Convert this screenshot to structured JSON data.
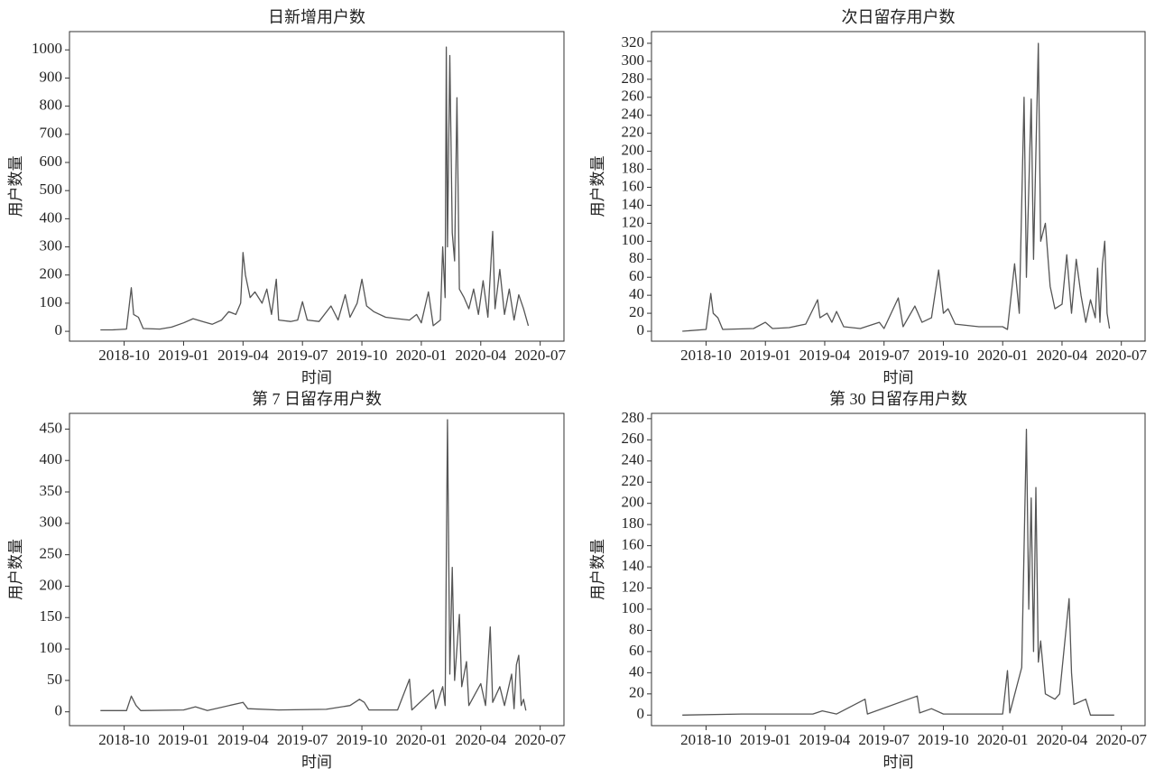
{
  "chart_data": [
    {
      "type": "line",
      "title": "日新增用户数",
      "xlabel": "时间",
      "ylabel": "用户数量",
      "color": "#555555",
      "xlim": [
        2018.52,
        2020.6
      ],
      "ylim": [
        -35,
        1065
      ],
      "xticks": [
        {
          "value": 2018.75,
          "label": "2018-10"
        },
        {
          "value": 2019.0,
          "label": "2019-01"
        },
        {
          "value": 2019.25,
          "label": "2019-04"
        },
        {
          "value": 2019.5,
          "label": "2019-07"
        },
        {
          "value": 2019.75,
          "label": "2019-10"
        },
        {
          "value": 2020.0,
          "label": "2020-01"
        },
        {
          "value": 2020.25,
          "label": "2020-04"
        },
        {
          "value": 2020.5,
          "label": "2020-07"
        }
      ],
      "yticks": [
        0,
        100,
        200,
        300,
        400,
        500,
        600,
        700,
        800,
        900,
        1000
      ],
      "x": [
        2018.65,
        2018.7,
        2018.76,
        2018.78,
        2018.79,
        2018.81,
        2018.83,
        2018.9,
        2018.95,
        2019.0,
        2019.04,
        2019.08,
        2019.12,
        2019.16,
        2019.19,
        2019.22,
        2019.24,
        2019.25,
        2019.26,
        2019.28,
        2019.3,
        2019.33,
        2019.35,
        2019.37,
        2019.39,
        2019.4,
        2019.45,
        2019.48,
        2019.5,
        2019.52,
        2019.57,
        2019.62,
        2019.65,
        2019.68,
        2019.7,
        2019.73,
        2019.75,
        2019.77,
        2019.8,
        2019.85,
        2019.9,
        2019.95,
        2019.98,
        2020.0,
        2020.03,
        2020.05,
        2020.08,
        2020.09,
        2020.1,
        2020.105,
        2020.11,
        2020.12,
        2020.13,
        2020.14,
        2020.15,
        2020.16,
        2020.18,
        2020.2,
        2020.22,
        2020.24,
        2020.26,
        2020.28,
        2020.3,
        2020.31,
        2020.33,
        2020.35,
        2020.37,
        2020.39,
        2020.41,
        2020.43,
        2020.45
      ],
      "values": [
        5,
        5,
        8,
        155,
        60,
        50,
        10,
        8,
        15,
        30,
        45,
        35,
        25,
        40,
        70,
        60,
        100,
        280,
        200,
        120,
        140,
        100,
        150,
        60,
        185,
        40,
        35,
        40,
        105,
        40,
        35,
        90,
        40,
        130,
        50,
        100,
        185,
        90,
        70,
        50,
        45,
        40,
        60,
        30,
        140,
        20,
        40,
        300,
        120,
        1010,
        300,
        980,
        350,
        250,
        830,
        150,
        120,
        80,
        150,
        60,
        180,
        50,
        355,
        80,
        220,
        60,
        150,
        40,
        130,
        80,
        20
      ]
    },
    {
      "type": "line",
      "title": "次日留存用户数",
      "xlabel": "时间",
      "ylabel": "用户数量",
      "color": "#555555",
      "xlim": [
        2018.52,
        2020.6
      ],
      "ylim": [
        -11,
        333
      ],
      "xticks": [
        {
          "value": 2018.75,
          "label": "2018-10"
        },
        {
          "value": 2019.0,
          "label": "2019-01"
        },
        {
          "value": 2019.25,
          "label": "2019-04"
        },
        {
          "value": 2019.5,
          "label": "2019-07"
        },
        {
          "value": 2019.75,
          "label": "2019-10"
        },
        {
          "value": 2020.0,
          "label": "2020-01"
        },
        {
          "value": 2020.25,
          "label": "2020-04"
        },
        {
          "value": 2020.5,
          "label": "2020-07"
        }
      ],
      "yticks": [
        0,
        20,
        40,
        60,
        80,
        100,
        120,
        140,
        160,
        180,
        200,
        220,
        240,
        260,
        280,
        300,
        320
      ],
      "x": [
        2018.65,
        2018.75,
        2018.77,
        2018.78,
        2018.8,
        2018.82,
        2018.95,
        2019.0,
        2019.03,
        2019.1,
        2019.17,
        2019.22,
        2019.23,
        2019.26,
        2019.28,
        2019.3,
        2019.33,
        2019.4,
        2019.48,
        2019.5,
        2019.56,
        2019.58,
        2019.63,
        2019.66,
        2019.7,
        2019.73,
        2019.75,
        2019.77,
        2019.8,
        2019.9,
        2020.0,
        2020.02,
        2020.05,
        2020.07,
        2020.09,
        2020.1,
        2020.12,
        2020.13,
        2020.15,
        2020.16,
        2020.18,
        2020.2,
        2020.22,
        2020.25,
        2020.27,
        2020.29,
        2020.31,
        2020.33,
        2020.35,
        2020.37,
        2020.39,
        2020.4,
        2020.41,
        2020.42,
        2020.43,
        2020.44,
        2020.45
      ],
      "values": [
        0,
        2,
        42,
        20,
        15,
        2,
        3,
        10,
        3,
        4,
        8,
        35,
        15,
        20,
        10,
        22,
        5,
        3,
        10,
        3,
        37,
        5,
        28,
        10,
        15,
        68,
        20,
        25,
        8,
        5,
        5,
        2,
        75,
        20,
        260,
        60,
        258,
        80,
        320,
        100,
        120,
        50,
        25,
        30,
        85,
        20,
        80,
        40,
        10,
        35,
        15,
        70,
        10,
        75,
        100,
        20,
        3
      ]
    },
    {
      "type": "line",
      "title": "第 7 日留存用户数",
      "xlabel": "时间",
      "ylabel": "用户数量",
      "color": "#555555",
      "xlim": [
        2018.52,
        2020.6
      ],
      "ylim": [
        -22,
        475
      ],
      "xticks": [
        {
          "value": 2018.75,
          "label": "2018-10"
        },
        {
          "value": 2019.0,
          "label": "2019-01"
        },
        {
          "value": 2019.25,
          "label": "2019-04"
        },
        {
          "value": 2019.5,
          "label": "2019-07"
        },
        {
          "value": 2019.75,
          "label": "2019-10"
        },
        {
          "value": 2020.0,
          "label": "2020-01"
        },
        {
          "value": 2020.25,
          "label": "2020-04"
        },
        {
          "value": 2020.5,
          "label": "2020-07"
        }
      ],
      "yticks": [
        0,
        50,
        100,
        150,
        200,
        250,
        300,
        350,
        400,
        450
      ],
      "x": [
        2018.65,
        2018.76,
        2018.78,
        2018.8,
        2018.82,
        2019.0,
        2019.05,
        2019.1,
        2019.25,
        2019.27,
        2019.4,
        2019.6,
        2019.7,
        2019.74,
        2019.76,
        2019.78,
        2019.9,
        2019.95,
        2019.96,
        2020.05,
        2020.06,
        2020.09,
        2020.1,
        2020.11,
        2020.12,
        2020.13,
        2020.14,
        2020.16,
        2020.17,
        2020.19,
        2020.2,
        2020.25,
        2020.27,
        2020.29,
        2020.3,
        2020.33,
        2020.35,
        2020.38,
        2020.39,
        2020.4,
        2020.41,
        2020.42,
        2020.43,
        2020.44
      ],
      "values": [
        2,
        2,
        25,
        10,
        2,
        3,
        8,
        2,
        15,
        5,
        3,
        4,
        10,
        20,
        15,
        3,
        3,
        52,
        3,
        35,
        5,
        40,
        10,
        465,
        60,
        230,
        50,
        155,
        40,
        80,
        10,
        45,
        10,
        135,
        15,
        40,
        10,
        60,
        5,
        75,
        90,
        10,
        20,
        2
      ]
    },
    {
      "type": "line",
      "title": "第 30 日留存用户数",
      "xlabel": "时间",
      "ylabel": "用户数量",
      "color": "#555555",
      "xlim": [
        2018.52,
        2020.6
      ],
      "ylim": [
        -10,
        285
      ],
      "xticks": [
        {
          "value": 2018.75,
          "label": "2018-10"
        },
        {
          "value": 2019.0,
          "label": "2019-01"
        },
        {
          "value": 2019.25,
          "label": "2019-04"
        },
        {
          "value": 2019.5,
          "label": "2019-07"
        },
        {
          "value": 2019.75,
          "label": "2019-10"
        },
        {
          "value": 2020.0,
          "label": "2020-01"
        },
        {
          "value": 2020.25,
          "label": "2020-04"
        },
        {
          "value": 2020.5,
          "label": "2020-07"
        }
      ],
      "yticks": [
        0,
        20,
        40,
        60,
        80,
        100,
        120,
        140,
        160,
        180,
        200,
        220,
        240,
        260,
        280
      ],
      "x": [
        2018.65,
        2018.9,
        2019.2,
        2019.24,
        2019.3,
        2019.42,
        2019.43,
        2019.64,
        2019.65,
        2019.7,
        2019.75,
        2020.0,
        2020.02,
        2020.03,
        2020.08,
        2020.1,
        2020.11,
        2020.12,
        2020.13,
        2020.14,
        2020.15,
        2020.16,
        2020.18,
        2020.22,
        2020.24,
        2020.28,
        2020.29,
        2020.3,
        2020.35,
        2020.37,
        2020.47
      ],
      "values": [
        0,
        1,
        1,
        4,
        1,
        15,
        1,
        18,
        2,
        6,
        1,
        1,
        42,
        2,
        45,
        270,
        100,
        205,
        60,
        215,
        50,
        70,
        20,
        15,
        20,
        110,
        40,
        10,
        15,
        0,
        0
      ]
    }
  ]
}
